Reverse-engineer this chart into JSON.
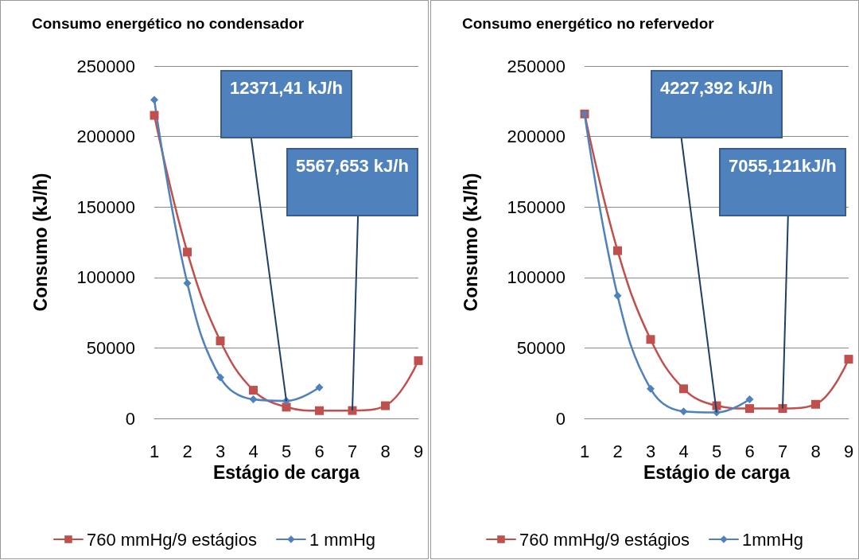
{
  "chart_data": [
    {
      "type": "line",
      "title": "Consumo energético no condensador",
      "xlabel": "Estágio de carga",
      "ylabel": "Consumo (kJ/h)",
      "categories": [
        "1",
        "2",
        "3",
        "4",
        "5",
        "6",
        "7",
        "8",
        "9"
      ],
      "series": [
        {
          "name": "760 mmHg/9 estágios",
          "color": "#c0504d",
          "marker": "square",
          "values": [
            215000,
            118000,
            55000,
            20000,
            8000,
            5500,
            5567.653,
            9000,
            41000
          ]
        },
        {
          "name": "1 mmHg",
          "color": "#4f81bd",
          "marker": "diamond",
          "values": [
            226000,
            96000,
            29000,
            13500,
            12371.41,
            22000,
            null,
            null,
            null
          ]
        }
      ],
      "ylim": [
        0,
        250000
      ],
      "yticks": [
        0,
        50000,
        100000,
        150000,
        200000,
        250000
      ],
      "grid": "y",
      "legend": "bottom",
      "line_style": "solid",
      "annotations": [
        {
          "text": "12371,41 kJ/h",
          "x": "5",
          "y": 12371.41
        },
        {
          "text": "5567,653 kJ/h",
          "x": "7",
          "y": 5567.653
        }
      ]
    },
    {
      "type": "line",
      "title": "Consumo energético no refervedor",
      "xlabel": "Estágio de carga",
      "ylabel": "Consumo (kJ/h)",
      "categories": [
        "1",
        "2",
        "3",
        "4",
        "5",
        "6",
        "7",
        "8",
        "9"
      ],
      "series": [
        {
          "name": "760 mmHg/9 estágios",
          "color": "#c0504d",
          "marker": "square",
          "values": [
            216000,
            119000,
            56000,
            21000,
            9000,
            7000,
            7055.121,
            10000,
            42000
          ]
        },
        {
          "name": "1mmHg",
          "color": "#4f81bd",
          "marker": "diamond",
          "values": [
            216000,
            87000,
            21000,
            5000,
            4227.392,
            13500,
            null,
            null,
            null
          ]
        }
      ],
      "ylim": [
        0,
        250000
      ],
      "yticks": [
        0,
        50000,
        100000,
        150000,
        200000,
        250000
      ],
      "grid": "y",
      "legend": "bottom",
      "line_style": "solid",
      "annotations": [
        {
          "text": "4227,392 kJ/h",
          "x": "5",
          "y": 4227.392
        },
        {
          "text": "7055,121kJ/h",
          "x": "7",
          "y": 7055.121
        }
      ]
    }
  ]
}
